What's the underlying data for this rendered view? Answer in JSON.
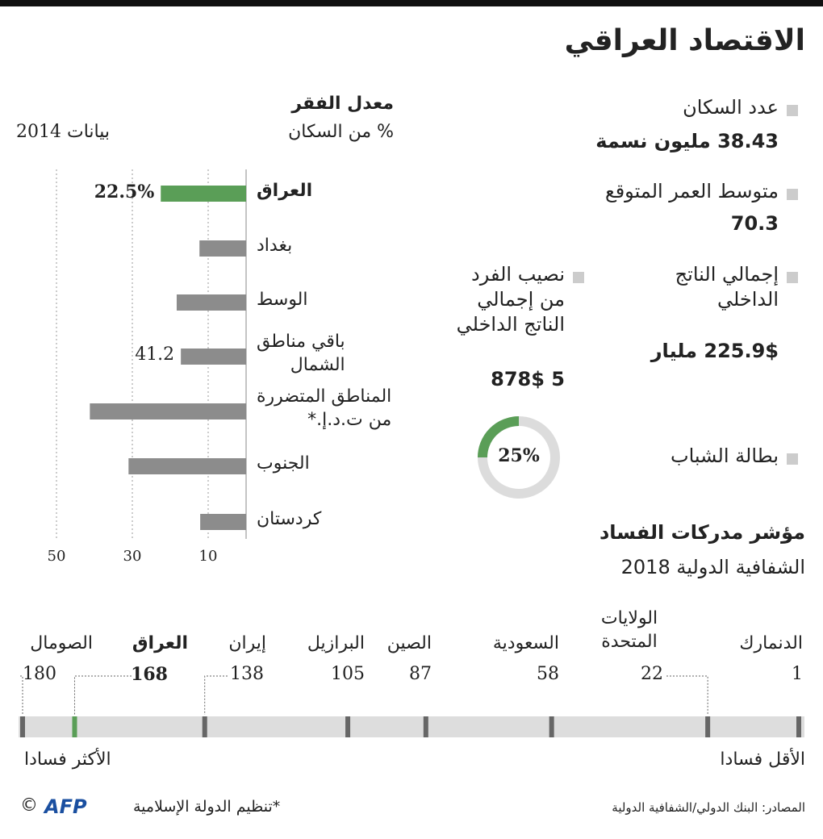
{
  "title": "الاقتصاد العراقي",
  "stats": [
    {
      "label": "عدد السكان",
      "value": "38.43 مليون نسمة"
    },
    {
      "label": "متوسط العمر المتوقع",
      "value": "70.3"
    },
    {
      "label": "إجمالي الناتج\nالداخلي",
      "value": "225.9$ مليار"
    },
    {
      "label": "نصيب الفرد\nمن إجمالي\nالناتج الداخلي",
      "value": "5 878$"
    },
    {
      "label": "بطالة الشباب"
    }
  ],
  "chart_data": [
    {
      "type": "bar",
      "title": "معدل الفقر",
      "subtitle": "% من السكان",
      "note": "بيانات 2014",
      "annotation": "41.2",
      "categories": [
        "العراق",
        "بغداد",
        "الوسط",
        "باقي مناطق\nالشمال",
        "المناطق المتضررة\nمن ت.د.إ.*",
        "الجنوب",
        "كردستان"
      ],
      "values": [
        22.5,
        12.3,
        18.3,
        17.2,
        41.2,
        31,
        12.1
      ],
      "value_labels": [
        "22.5%",
        null,
        null,
        null,
        null,
        null,
        null
      ],
      "colors": [
        "#5a9e57",
        "#8c8c8c",
        "#8c8c8c",
        "#8c8c8c",
        "#8c8c8c",
        "#8c8c8c",
        "#8c8c8c"
      ],
      "xlim": [
        0,
        60
      ],
      "xticks": [
        10,
        30,
        50
      ],
      "grid": true
    },
    {
      "type": "pie",
      "values": [
        25
      ],
      "value_labels": [
        "25%"
      ],
      "color": "#5a9e57",
      "remainder_color": "#dcdcdc"
    },
    {
      "type": "strip",
      "title": "مؤشر مدركات الفساد",
      "subtitle": "الشفافية الدولية 2018",
      "categories": [
        "الدنمارك",
        "الولايات\nالمتحدة",
        "السعودية",
        "الصين",
        "البرازيل",
        "إيران",
        "العراق",
        "الصومال"
      ],
      "values": [
        1,
        22,
        58,
        87,
        105,
        138,
        168,
        180
      ],
      "colors": [
        "#666666",
        "#666666",
        "#666666",
        "#666666",
        "#666666",
        "#666666",
        "#5a9e57",
        "#666666"
      ],
      "xlim": [
        1,
        180
      ],
      "low_label": "الأقل فسادا",
      "high_label": "الأكثر فسادا"
    }
  ],
  "footer": {
    "note": "*تنظيم الدولة الإسلامية",
    "source": "المصادر: البنك الدولي/الشفافية الدولية",
    "logo": "AFP",
    "copyright": "©"
  }
}
